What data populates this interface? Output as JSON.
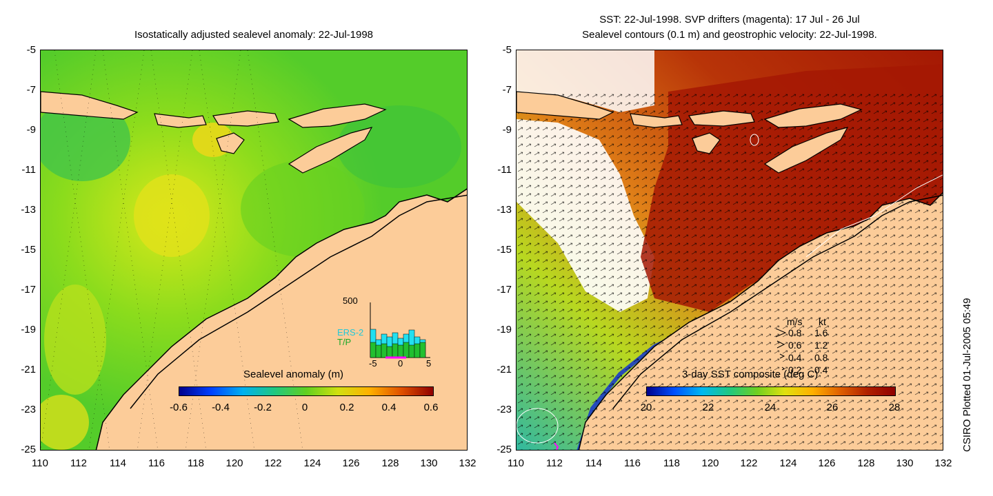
{
  "left_panel": {
    "title": "Isostatically adjusted sealevel anomaly: 22-Jul-1998",
    "colorbar_label": "Sealevel anomaly (m)",
    "colorbar_ticks": [
      "-0.6",
      "-0.4",
      "-0.2",
      "0",
      "0.2",
      "0.4",
      "0.6"
    ],
    "inset": {
      "ymax_label": "500",
      "series_1": "ERS-2",
      "series_2": "T/P",
      "x_ticks": [
        "-5",
        "0",
        "5"
      ],
      "colors": {
        "ers2": "#22e0f0",
        "tp": "#22c030",
        "track": "#ff00ff"
      }
    }
  },
  "right_panel": {
    "title_line1": "SST: 22-Jul-1998. SVP drifters (magenta): 17 Jul - 26 Jul",
    "title_line2": "Sealevel contours (0.1 m) and geostrophic velocity: 22-Jul-1998.",
    "colorbar_label": "3-day SST composite (deg C)",
    "colorbar_ticks": [
      "20",
      "22",
      "24",
      "26",
      "28"
    ],
    "velocity_legend": {
      "header_ms": "m/s",
      "header_kt": "kt",
      "rows": [
        {
          "ms": "0.8",
          "kt": "1.6"
        },
        {
          "ms": "0.6",
          "kt": "1.2"
        },
        {
          "ms": "0.4",
          "kt": "0.8"
        },
        {
          "ms": "0.2",
          "kt": "0.4"
        }
      ]
    }
  },
  "axes": {
    "y_ticks": [
      "-5",
      "-7",
      "-9",
      "-11",
      "-13",
      "-15",
      "-17",
      "-19",
      "-21",
      "-23",
      "-25"
    ],
    "x_ticks": [
      "110",
      "112",
      "114",
      "116",
      "118",
      "120",
      "122",
      "124",
      "126",
      "128",
      "130",
      "132"
    ]
  },
  "credit": "CSIRO Plotted 01-Jul-2005 05:49",
  "colors": {
    "land": "#fccc99",
    "ocean_anomaly": "#5ad020",
    "sst_warm": "#a81a06",
    "sst_mid": "#e06010"
  }
}
